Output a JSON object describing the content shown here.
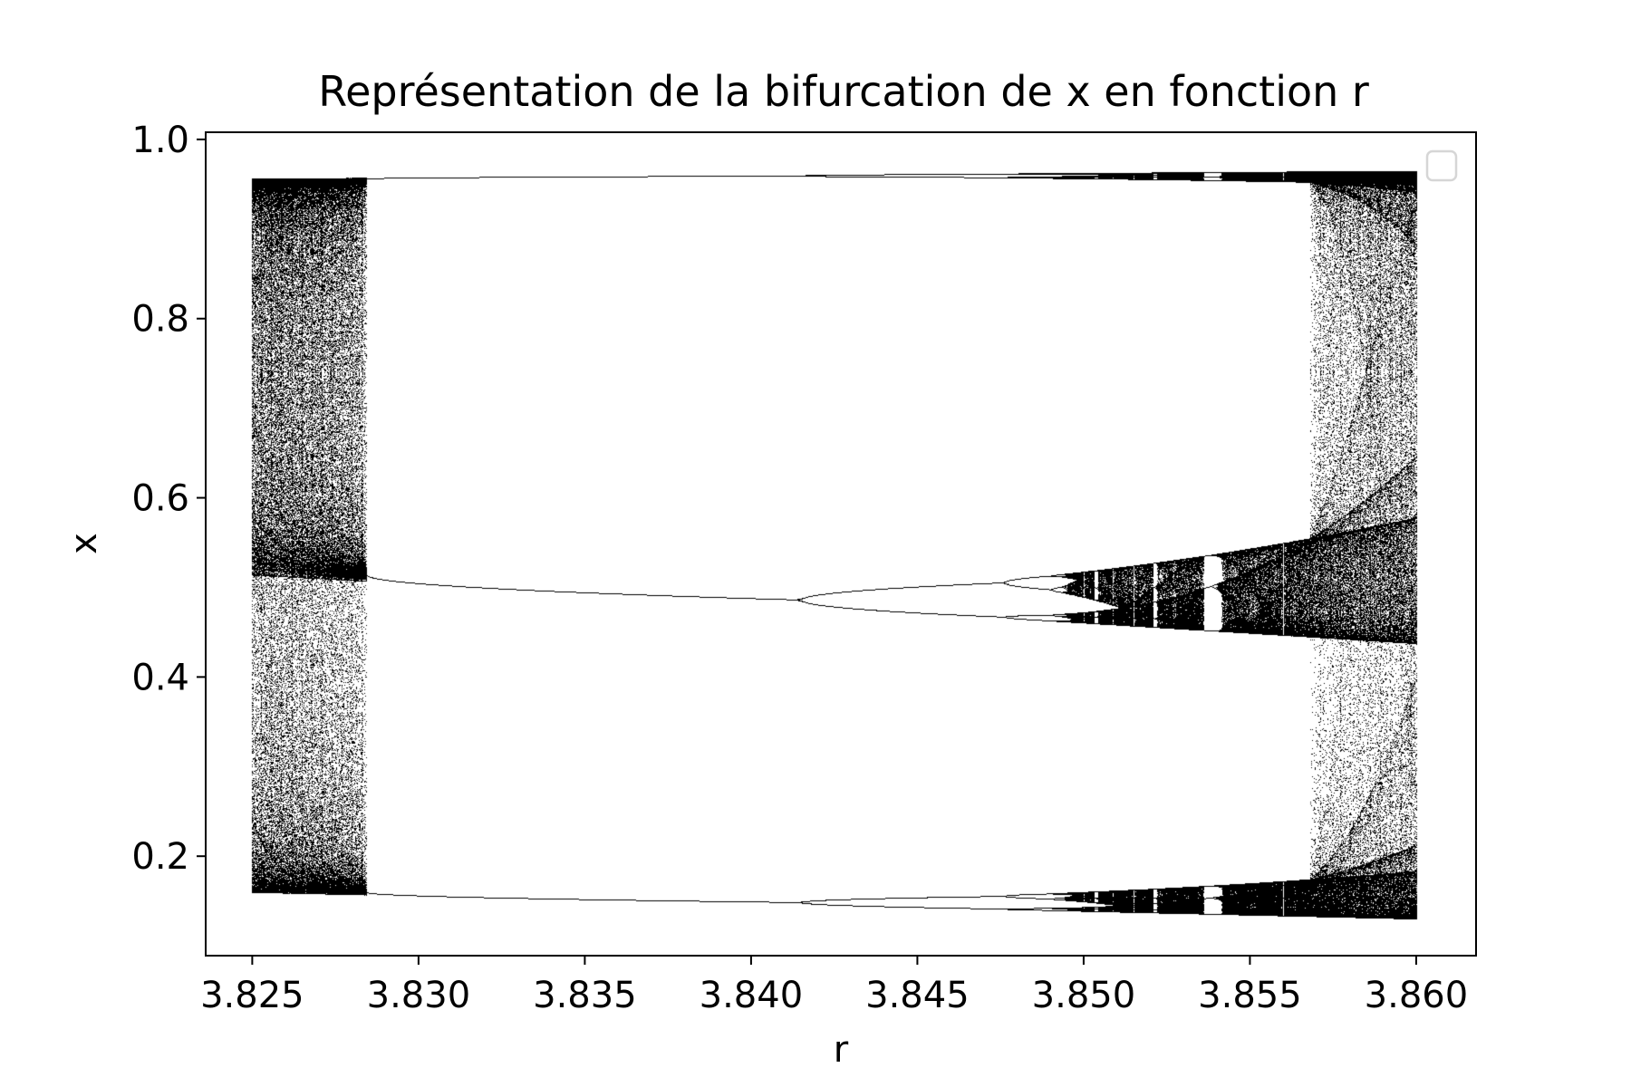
{
  "chart_data": {
    "type": "scatter",
    "title": "Représentation de la bifurcation de x en fonction r",
    "xlabel": "r",
    "ylabel": "x",
    "xlim": [
      3.8236,
      3.8618
    ],
    "ylim": [
      0.089,
      1.008
    ],
    "xticks": [
      3.825,
      3.83,
      3.835,
      3.84,
      3.845,
      3.85,
      3.855,
      3.86
    ],
    "xtick_labels": [
      "3.825",
      "3.830",
      "3.835",
      "3.840",
      "3.845",
      "3.850",
      "3.855",
      "3.860"
    ],
    "yticks": [
      0.2,
      0.4,
      0.6,
      0.8,
      1.0
    ],
    "ytick_labels": [
      "0.2",
      "0.4",
      "0.6",
      "0.8",
      "1.0"
    ],
    "grid": false,
    "legend": {
      "placement": "upper right",
      "entries": []
    },
    "marker_color": "#000000",
    "series": [
      {
        "r_range": [
          3.825,
          3.86
        ],
        "description_regions": [
          {
            "kind": "chaotic_band",
            "r": [
              3.825,
              3.8285
            ],
            "x": [
              0.51,
              0.957
            ]
          },
          {
            "kind": "chaotic_band",
            "r": [
              3.825,
              3.8285
            ],
            "x": [
              0.16,
              0.51
            ]
          },
          {
            "kind": "periodic_branch",
            "r": [
              3.8285,
              3.8568
            ],
            "x_start": 0.957,
            "x_end": 0.962
          },
          {
            "kind": "periodic_branch",
            "r": [
              3.8285,
              3.8415
            ],
            "x_start": 0.509,
            "x_end": 0.487
          },
          {
            "kind": "periodic_branch",
            "r": [
              3.8285,
              3.8415
            ],
            "x_start": 0.16,
            "x_end": 0.149
          },
          {
            "kind": "period_doubling",
            "r": 3.8415,
            "x": [
              0.487,
              0.149
            ]
          },
          {
            "kind": "chaotic_band",
            "r": [
              3.8505,
              3.8568
            ],
            "x": [
              0.455,
              0.555
            ]
          },
          {
            "kind": "chaotic_band",
            "r": [
              3.8505,
              3.8568
            ],
            "x": [
              0.14,
              0.175
            ]
          },
          {
            "kind": "chaotic_band",
            "r": [
              3.8568,
              3.86
            ],
            "x": [
              0.13,
              0.965
            ]
          }
        ]
      }
    ]
  }
}
